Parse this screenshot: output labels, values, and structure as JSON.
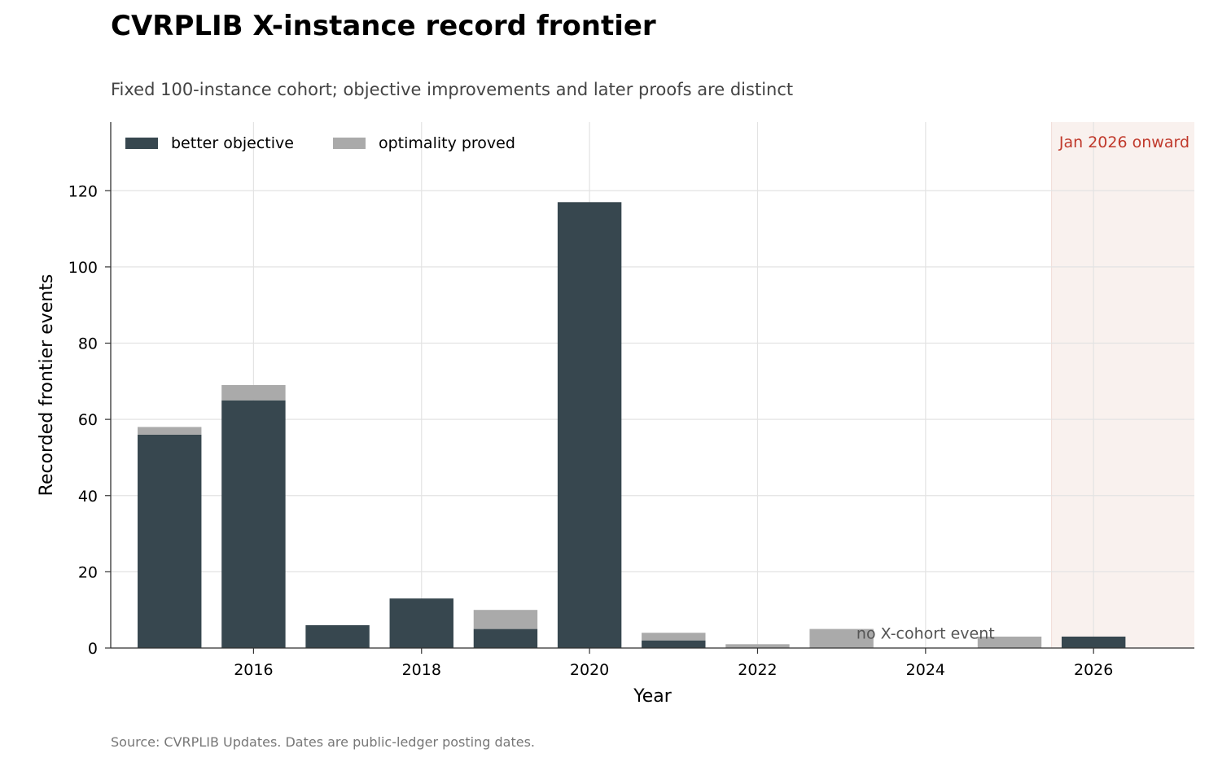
{
  "title": "CVRPLIB X-instance record frontier",
  "subtitle": "Fixed 100-instance cohort; objective improvements and later proofs are distinct",
  "source": "Source: CVRPLIB Updates. Dates are public-ledger posting dates.",
  "chart_data": {
    "type": "bar",
    "stacked": true,
    "categories": [
      2015,
      2016,
      2017,
      2018,
      2019,
      2020,
      2021,
      2022,
      2023,
      2024,
      2025,
      2026
    ],
    "series": [
      {
        "name": "better objective",
        "color": "#37474f",
        "values": [
          56,
          65,
          6,
          13,
          5,
          117,
          2,
          0,
          0,
          0,
          0,
          3
        ]
      },
      {
        "name": "optimality proved",
        "color": "#aaaaaa",
        "values": [
          2,
          4,
          0,
          0,
          5,
          0,
          2,
          1,
          5,
          0,
          3,
          0
        ]
      }
    ],
    "xlabel": "Year",
    "ylabel": "Recorded frontier events",
    "xlim": [
      2014.3,
      2027.2
    ],
    "ylim": [
      0,
      138
    ],
    "xticks": [
      2016,
      2018,
      2020,
      2022,
      2024,
      2026
    ],
    "yticks": [
      0,
      20,
      40,
      60,
      80,
      100,
      120
    ],
    "grid": true,
    "legend_position": "top-left",
    "shaded_region": {
      "from": 2025.5,
      "to": 2027.2,
      "label": "Jan 2026 onward",
      "color": "#c0392b"
    },
    "annotations": [
      {
        "text": "no X-cohort event",
        "x": 2024,
        "y": 4
      }
    ]
  }
}
